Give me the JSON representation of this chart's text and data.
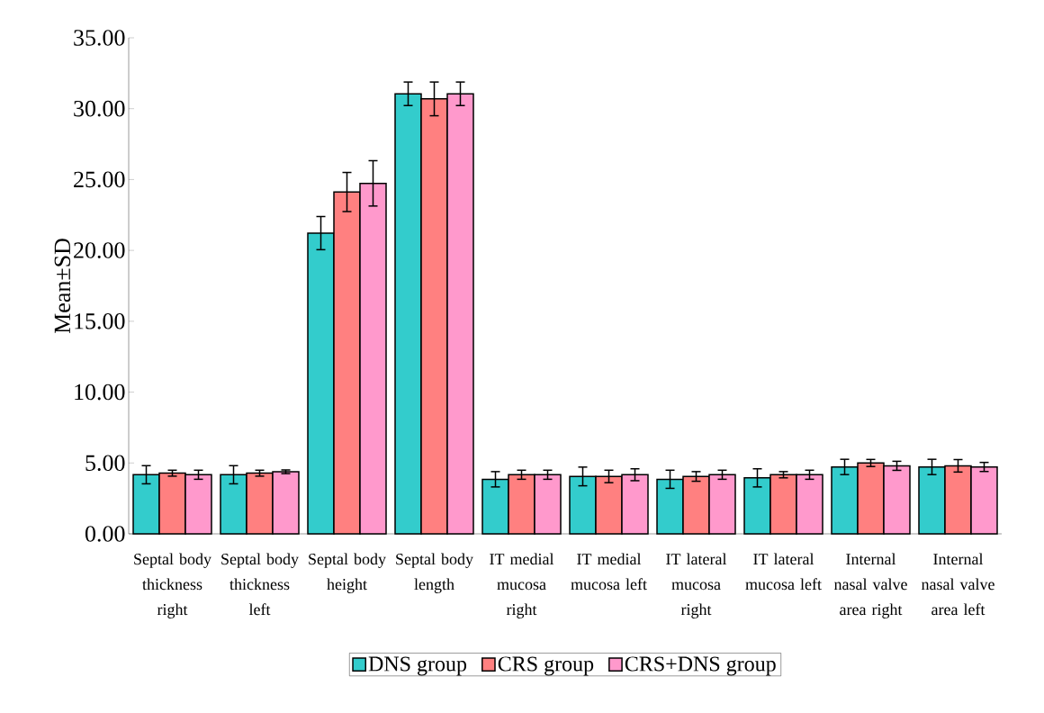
{
  "chart_data": {
    "type": "bar",
    "ylabel": "Mean±SD",
    "categories": [
      "Septal body thickness right",
      "Septal body thickness left",
      "Septal body height",
      "Septal body length",
      "IT medial mucosa right",
      "IT medial mucosa left",
      "IT lateral mucosa right",
      "IT lateral mucosa left",
      "Internal nasal valve area right",
      "Internal nasal valve area left"
    ],
    "series": [
      {
        "name": "DNS group",
        "color": "#33cccc",
        "values": [
          4.17,
          4.17,
          21.22,
          31.05,
          3.85,
          4.05,
          3.85,
          3.95,
          4.72,
          4.72
        ],
        "errors": [
          0.64,
          0.64,
          1.17,
          0.83,
          0.54,
          0.66,
          0.64,
          0.64,
          0.54,
          0.54
        ]
      },
      {
        "name": "CRS group",
        "color": "#ff8080",
        "values": [
          4.28,
          4.28,
          24.12,
          30.69,
          4.17,
          4.05,
          4.05,
          4.17,
          5.0,
          4.8
        ],
        "errors": [
          0.21,
          0.21,
          1.38,
          1.19,
          0.32,
          0.44,
          0.34,
          0.22,
          0.25,
          0.44
        ]
      },
      {
        "name": "CRS+DNS group",
        "color": "#ff99cc",
        "values": [
          4.17,
          4.38,
          24.73,
          31.05,
          4.17,
          4.17,
          4.17,
          4.17,
          4.8,
          4.72
        ],
        "errors": [
          0.32,
          0.13,
          1.6,
          0.83,
          0.32,
          0.42,
          0.32,
          0.32,
          0.32,
          0.32
        ]
      }
    ],
    "ylim": [
      0,
      35
    ],
    "yticks": [
      {
        "value": 0,
        "label": "0.00"
      },
      {
        "value": 5,
        "label": "5.00"
      },
      {
        "value": 10,
        "label": "10.00"
      },
      {
        "value": 15,
        "label": "15.00"
      },
      {
        "value": 20,
        "label": "20.00"
      },
      {
        "value": 25,
        "label": "25.00"
      },
      {
        "value": 30,
        "label": "30.00"
      },
      {
        "value": 35,
        "label": "35.00"
      }
    ],
    "grid": false,
    "legend": "bottom"
  }
}
